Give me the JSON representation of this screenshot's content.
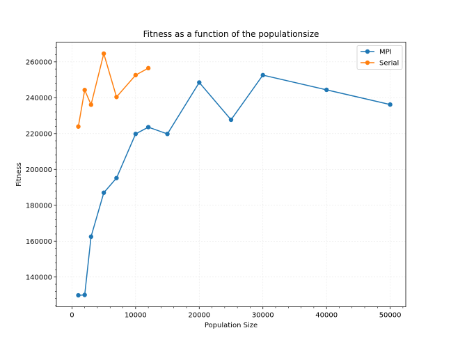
{
  "chart_data": {
    "type": "line",
    "title": "Fitness as a function of the populationsize",
    "xlabel": "Population Size",
    "ylabel": "Fitness",
    "xlim": [
      -2450,
      52450
    ],
    "ylim": [
      123400,
      271000
    ],
    "xticks": [
      0,
      10000,
      20000,
      30000,
      40000,
      50000
    ],
    "yticks": [
      140000,
      160000,
      180000,
      200000,
      220000,
      240000,
      260000
    ],
    "grid": true,
    "legend": "top-right",
    "series": [
      {
        "name": "MPI",
        "color": "#1f77b4",
        "x": [
          1000,
          2000,
          3000,
          5000,
          7000,
          10000,
          12000,
          15000,
          20000,
          25000,
          30000,
          40000,
          50000
        ],
        "y": [
          129800,
          130000,
          162500,
          187000,
          195200,
          219800,
          223600,
          219800,
          248500,
          227700,
          252600,
          244400,
          236200
        ]
      },
      {
        "name": "Serial",
        "color": "#ff7f0e",
        "x": [
          1000,
          2000,
          3000,
          5000,
          7000,
          10000,
          12000
        ],
        "y": [
          223900,
          244300,
          236100,
          264600,
          240400,
          252600,
          256500
        ]
      }
    ]
  }
}
